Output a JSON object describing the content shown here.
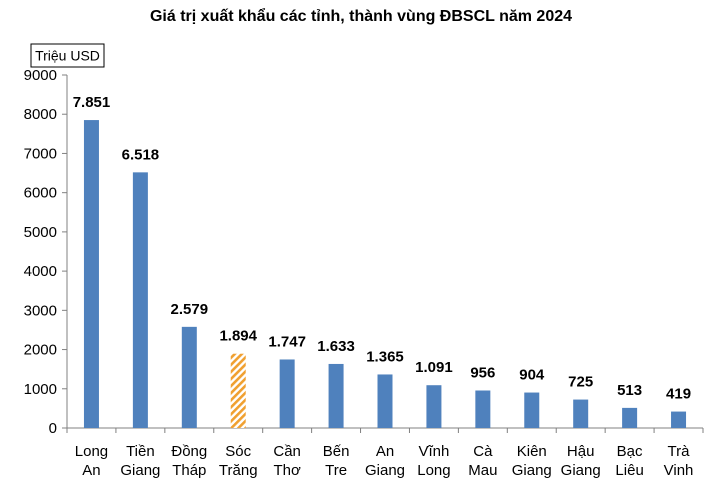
{
  "chart_data": {
    "type": "bar",
    "title": "Giá trị xuất khẩu các tỉnh, thành vùng ĐBSCL năm 2024",
    "unit_label": "Triệu USD",
    "categories": [
      [
        "Long",
        "An"
      ],
      [
        "Tiền",
        "Giang"
      ],
      [
        "Đồng",
        "Tháp"
      ],
      [
        "Sóc",
        "Trăng"
      ],
      [
        "Cần",
        "Thơ"
      ],
      [
        "Bến",
        "Tre"
      ],
      [
        "An",
        "Giang"
      ],
      [
        "Vĩnh",
        "Long"
      ],
      [
        "Cà",
        "Mau"
      ],
      [
        "Kiên",
        "Giang"
      ],
      [
        "Hậu",
        "Giang"
      ],
      [
        "Bạc",
        "Liêu"
      ],
      [
        "Trà",
        "Vinh"
      ]
    ],
    "values": [
      7851,
      6518,
      2579,
      1894,
      1747,
      1633,
      1365,
      1091,
      956,
      904,
      725,
      513,
      419
    ],
    "data_labels": [
      "7.851",
      "6.518",
      "2.579",
      "1.894",
      "1.747",
      "1.633",
      "1.365",
      "1.091",
      "956",
      "904",
      "725",
      "513",
      "419"
    ],
    "highlight_index": 3,
    "ylim": [
      0,
      9000
    ],
    "yticks": [
      0,
      1000,
      2000,
      3000,
      4000,
      5000,
      6000,
      7000,
      8000,
      9000
    ],
    "grid": false,
    "colors": {
      "bar": "#4f81bd",
      "highlight": "#f0a030",
      "axis": "#808080"
    }
  }
}
